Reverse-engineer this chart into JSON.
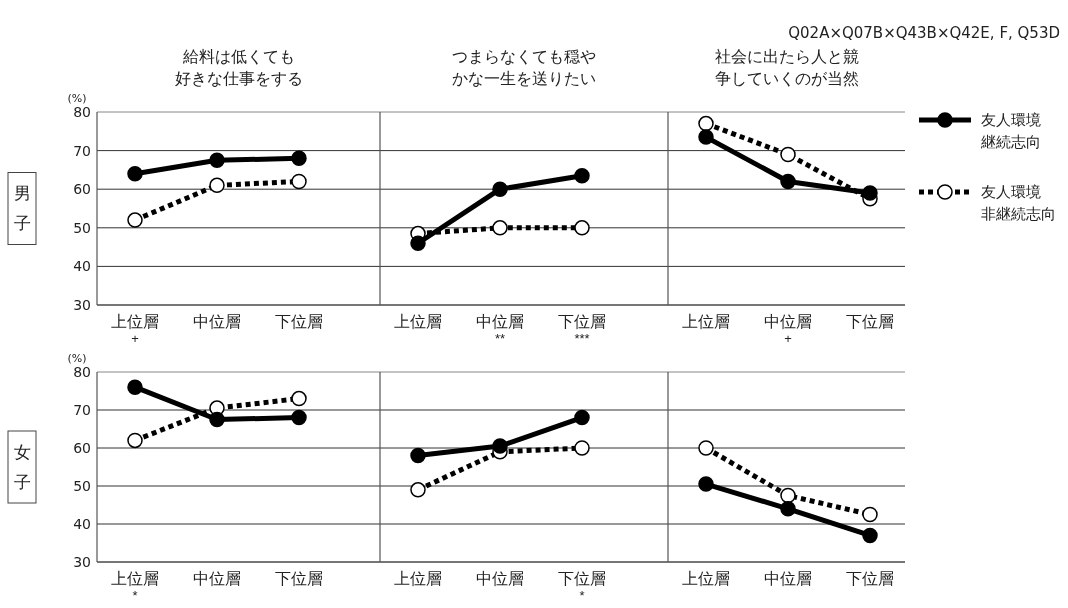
{
  "chart_data": [
    {
      "type": "line",
      "title": "給料は低くても好きな仕事をする",
      "ylabel": "(%)",
      "categories": [
        "上位層+",
        "中位層",
        "下位層"
      ],
      "ylim": [
        30,
        80
      ],
      "yticks": [
        30,
        40,
        50,
        60,
        70,
        80
      ],
      "grid": "y",
      "marker": "circle",
      "legend": false,
      "annotations": [
        "男子"
      ],
      "series": [
        {
          "color": "#000000",
          "line_style": "solid",
          "values": [
            64,
            67.5,
            68
          ]
        },
        {
          "color": "#000000",
          "line_style": "dotted",
          "values": [
            52,
            61,
            62
          ]
        }
      ]
    },
    {
      "type": "line",
      "title": "つまらなくても穏やかな一生を送りたい",
      "categories": [
        "上位層",
        "中位層**",
        "下位層***"
      ],
      "ylim": [
        30,
        80
      ],
      "yticks": [
        30,
        40,
        50,
        60,
        70,
        80
      ],
      "grid": "y",
      "marker": "circle",
      "legend": false,
      "tick_labels": "x",
      "series": [
        {
          "color": "#000000",
          "line_style": "solid",
          "values": [
            46,
            60,
            63.5
          ]
        },
        {
          "color": "#000000",
          "line_style": "dotted",
          "values": [
            48.5,
            50,
            50
          ]
        }
      ]
    },
    {
      "type": "line",
      "title": "社会に出たら人と競争していくのが当然",
      "categories": [
        "上位層",
        "中位層+",
        "下位層"
      ],
      "ylim": [
        30,
        80
      ],
      "yticks": [
        30,
        40,
        50,
        60,
        70,
        80
      ],
      "grid": "y",
      "marker": "circle",
      "legend": "right",
      "tick_labels": "x",
      "annotations": [
        "Q02A×Q07B×Q43B×Q42E, F, Q53D"
      ],
      "series": [
        {
          "name": "友人環境継続志向",
          "color": "#000000",
          "line_style": "solid",
          "values": [
            73.5,
            62,
            59
          ]
        },
        {
          "name": "友人環境非継続志向",
          "color": "#000000",
          "line_style": "dotted",
          "values": [
            77,
            69,
            57.5
          ]
        }
      ]
    },
    {
      "type": "line",
      "ylabel": "(%)",
      "categories": [
        "上位層*",
        "中位層",
        "下位層"
      ],
      "ylim": [
        30,
        80
      ],
      "yticks": [
        30,
        40,
        50,
        60,
        70,
        80
      ],
      "grid": "y",
      "marker": "circle",
      "legend": false,
      "annotations": [
        "女子"
      ],
      "series": [
        {
          "color": "#000000",
          "line_style": "solid",
          "values": [
            76,
            67.5,
            68
          ]
        },
        {
          "color": "#000000",
          "line_style": "dotted",
          "values": [
            62,
            70.5,
            73
          ]
        }
      ]
    },
    {
      "type": "line",
      "categories": [
        "上位層",
        "中位層",
        "下位層*"
      ],
      "ylim": [
        30,
        80
      ],
      "yticks": [
        30,
        40,
        50,
        60,
        70,
        80
      ],
      "grid": "y",
      "marker": "circle",
      "legend": false,
      "tick_labels": "x",
      "series": [
        {
          "color": "#000000",
          "line_style": "solid",
          "values": [
            58,
            60.5,
            68
          ]
        },
        {
          "color": "#000000",
          "line_style": "dotted",
          "values": [
            49,
            59,
            60
          ]
        }
      ]
    },
    {
      "type": "line",
      "categories": [
        "上位層",
        "中位層",
        "下位層"
      ],
      "ylim": [
        30,
        80
      ],
      "yticks": [
        30,
        40,
        50,
        60,
        70,
        80
      ],
      "grid": "y",
      "marker": "circle",
      "legend": false,
      "tick_labels": "x",
      "series": [
        {
          "color": "#000000",
          "line_style": "solid",
          "values": [
            50.5,
            44,
            37
          ]
        },
        {
          "color": "#000000",
          "line_style": "dotted",
          "values": [
            60,
            47.5,
            42.5
          ]
        }
      ]
    }
  ]
}
